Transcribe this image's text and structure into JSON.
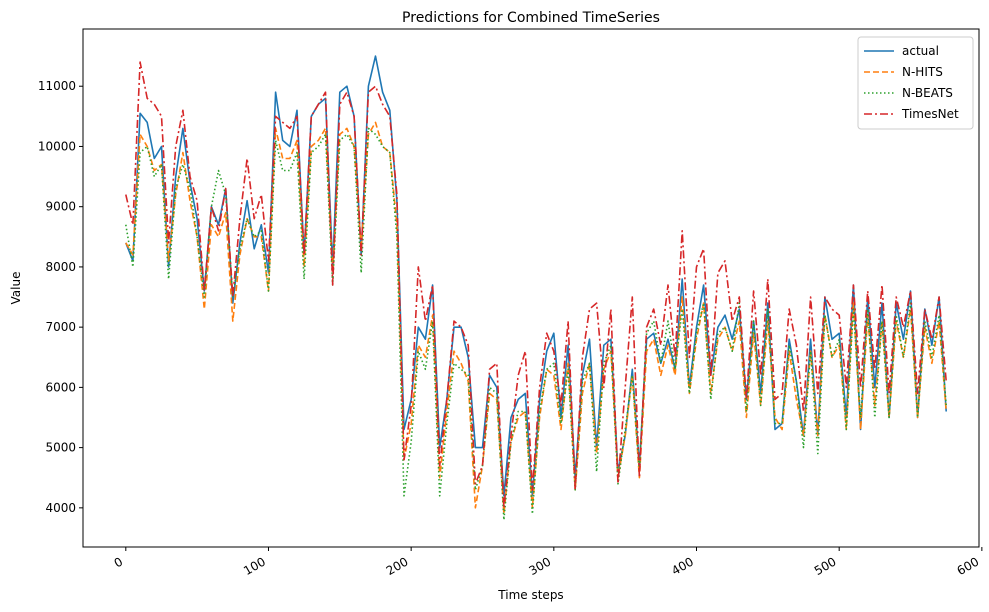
{
  "chart_data": {
    "type": "line",
    "title": "Predictions for Combined TimeSeries",
    "xlabel": "Time steps",
    "ylabel": "Value",
    "xlim": [
      -30,
      598
    ],
    "ylim": [
      3350,
      11950
    ],
    "xticks": [
      0,
      100,
      200,
      300,
      400,
      500,
      600
    ],
    "yticks": [
      4000,
      5000,
      6000,
      7000,
      8000,
      9000,
      10000,
      11000
    ],
    "legend_position": "top-right",
    "x": [
      0,
      5,
      10,
      15,
      20,
      25,
      30,
      35,
      40,
      45,
      50,
      55,
      60,
      65,
      70,
      75,
      80,
      85,
      90,
      95,
      100,
      105,
      110,
      115,
      120,
      125,
      130,
      135,
      140,
      145,
      150,
      155,
      160,
      165,
      170,
      175,
      180,
      185,
      190,
      195,
      200,
      205,
      210,
      215,
      220,
      225,
      230,
      235,
      240,
      245,
      250,
      255,
      260,
      265,
      270,
      275,
      280,
      285,
      290,
      295,
      300,
      305,
      310,
      315,
      320,
      325,
      330,
      335,
      340,
      345,
      350,
      355,
      360,
      365,
      370,
      375,
      380,
      385,
      390,
      395,
      400,
      405,
      410,
      415,
      420,
      425,
      430,
      435,
      440,
      445,
      450,
      455,
      460,
      465,
      470,
      475,
      480,
      485,
      490,
      495,
      500,
      505,
      510,
      515,
      520,
      525,
      530,
      535,
      540,
      545,
      550,
      555,
      560,
      565,
      570,
      575
    ],
    "series": [
      {
        "name": "actual",
        "color": "#1f77b4",
        "style": "solid",
        "values": [
          8400,
          8100,
          10550,
          10400,
          9800,
          10000,
          8000,
          9500,
          10300,
          9400,
          8800,
          7600,
          9000,
          8700,
          9300,
          7400,
          8400,
          9100,
          8300,
          8700,
          7900,
          10900,
          10100,
          10000,
          10600,
          8200,
          10500,
          10700,
          10800,
          8000,
          10900,
          11000,
          10500,
          8200,
          11000,
          11500,
          10900,
          10600,
          9100,
          5300,
          5800,
          7000,
          6800,
          7700,
          5000,
          5800,
          7000,
          7000,
          6500,
          5000,
          5000,
          6200,
          6000,
          4200,
          5500,
          5800,
          5900,
          4200,
          5800,
          6600,
          6900,
          5500,
          6700,
          4500,
          6200,
          6800,
          5000,
          6700,
          6800,
          4600,
          5200,
          6300,
          4700,
          6800,
          6900,
          6400,
          6800,
          6300,
          7800,
          6000,
          7000,
          7700,
          6200,
          7000,
          7200,
          6800,
          7300,
          5800,
          7100,
          5900,
          7400,
          5300,
          5400,
          6800,
          6100,
          5200,
          6800,
          5200,
          7500,
          6800,
          6900,
          5500,
          7700,
          5300,
          7500,
          6000,
          7400,
          5500,
          7400,
          6800,
          7600,
          5500,
          7300,
          6700,
          7500,
          5600
        ]
      },
      {
        "name": "N-HITS",
        "color": "#ff7f0e",
        "style": "dashed",
        "values": [
          8400,
          8200,
          10200,
          10000,
          9600,
          9700,
          8100,
          9200,
          9900,
          9100,
          8500,
          7300,
          8700,
          8500,
          8900,
          7100,
          8200,
          8800,
          8500,
          8500,
          7600,
          10300,
          9800,
          9800,
          10100,
          8000,
          10000,
          10100,
          10300,
          7900,
          10200,
          10300,
          10000,
          8300,
          10200,
          10400,
          10000,
          9900,
          8700,
          4800,
          5400,
          6700,
          6500,
          7200,
          4500,
          5600,
          6600,
          6400,
          6100,
          4000,
          4700,
          5900,
          5800,
          3900,
          5100,
          5500,
          5600,
          4000,
          5500,
          6300,
          6200,
          5300,
          6400,
          4300,
          5900,
          6400,
          4900,
          6300,
          6600,
          4500,
          5200,
          6200,
          4500,
          6600,
          6800,
          6200,
          6700,
          6200,
          7500,
          5900,
          6800,
          7400,
          5900,
          6800,
          7000,
          6600,
          7100,
          5500,
          6900,
          5700,
          7100,
          5500,
          5300,
          6600,
          5800,
          5200,
          6600,
          5200,
          7200,
          6500,
          6700,
          5300,
          7400,
          5300,
          7200,
          5700,
          7100,
          5500,
          7100,
          6500,
          7300,
          5500,
          7000,
          6400,
          7100,
          5600
        ]
      },
      {
        "name": "N-BEATS",
        "color": "#2ca02c",
        "style": "dotted",
        "values": [
          8700,
          8000,
          9900,
          10000,
          9500,
          9700,
          7800,
          9300,
          9700,
          9300,
          8500,
          7500,
          9000,
          9600,
          9200,
          7500,
          8300,
          8800,
          8500,
          8600,
          7600,
          10100,
          9600,
          9600,
          9900,
          7800,
          9900,
          10000,
          10200,
          7700,
          10100,
          10200,
          10000,
          7900,
          10300,
          10200,
          10000,
          9900,
          8500,
          4200,
          5100,
          6600,
          6300,
          7100,
          4200,
          5400,
          6400,
          6300,
          6200,
          4300,
          4700,
          6000,
          5900,
          3800,
          5100,
          5600,
          5600,
          3900,
          5600,
          6300,
          6400,
          5400,
          6300,
          4300,
          6100,
          6400,
          4600,
          6400,
          6700,
          4400,
          5300,
          6200,
          4600,
          6900,
          7100,
          6400,
          7100,
          6300,
          7300,
          5900,
          6900,
          7400,
          5800,
          6900,
          7000,
          6600,
          7400,
          5600,
          7100,
          5700,
          7300,
          5400,
          5400,
          6700,
          6100,
          5000,
          6600,
          4900,
          7200,
          6500,
          6800,
          5300,
          7300,
          5500,
          7300,
          5500,
          7100,
          5500,
          7200,
          6500,
          7400,
          5500,
          7100,
          6500,
          7200,
          5700
        ]
      },
      {
        "name": "TimesNet",
        "color": "#d62728",
        "style": "dashdot",
        "values": [
          9200,
          8700,
          11400,
          10800,
          10700,
          10500,
          8400,
          10000,
          10600,
          9500,
          9100,
          7600,
          9000,
          8600,
          9300,
          7500,
          8800,
          9800,
          8800,
          9200,
          8100,
          10500,
          10400,
          10300,
          10500,
          8200,
          10500,
          10700,
          10900,
          7700,
          10700,
          10900,
          10500,
          8200,
          10900,
          11000,
          10700,
          10500,
          9200,
          4800,
          5700,
          8000,
          7100,
          7700,
          4700,
          5800,
          7100,
          7000,
          6700,
          4400,
          4700,
          6300,
          6400,
          4000,
          5200,
          6200,
          6600,
          4300,
          6000,
          6900,
          6600,
          5700,
          7100,
          4300,
          6500,
          7300,
          7400,
          6000,
          7300,
          4400,
          6000,
          7500,
          4500,
          7000,
          7300,
          6700,
          7700,
          6500,
          8600,
          6500,
          8000,
          8300,
          6200,
          7900,
          8100,
          7100,
          7500,
          5800,
          7600,
          6200,
          7800,
          5800,
          5900,
          7300,
          6700,
          5600,
          7500,
          5900,
          7500,
          7300,
          7200,
          6000,
          7700,
          6000,
          7600,
          6300,
          7700,
          5900,
          7500,
          7000,
          7600,
          5900,
          7300,
          6800,
          7500,
          6100
        ]
      }
    ]
  }
}
